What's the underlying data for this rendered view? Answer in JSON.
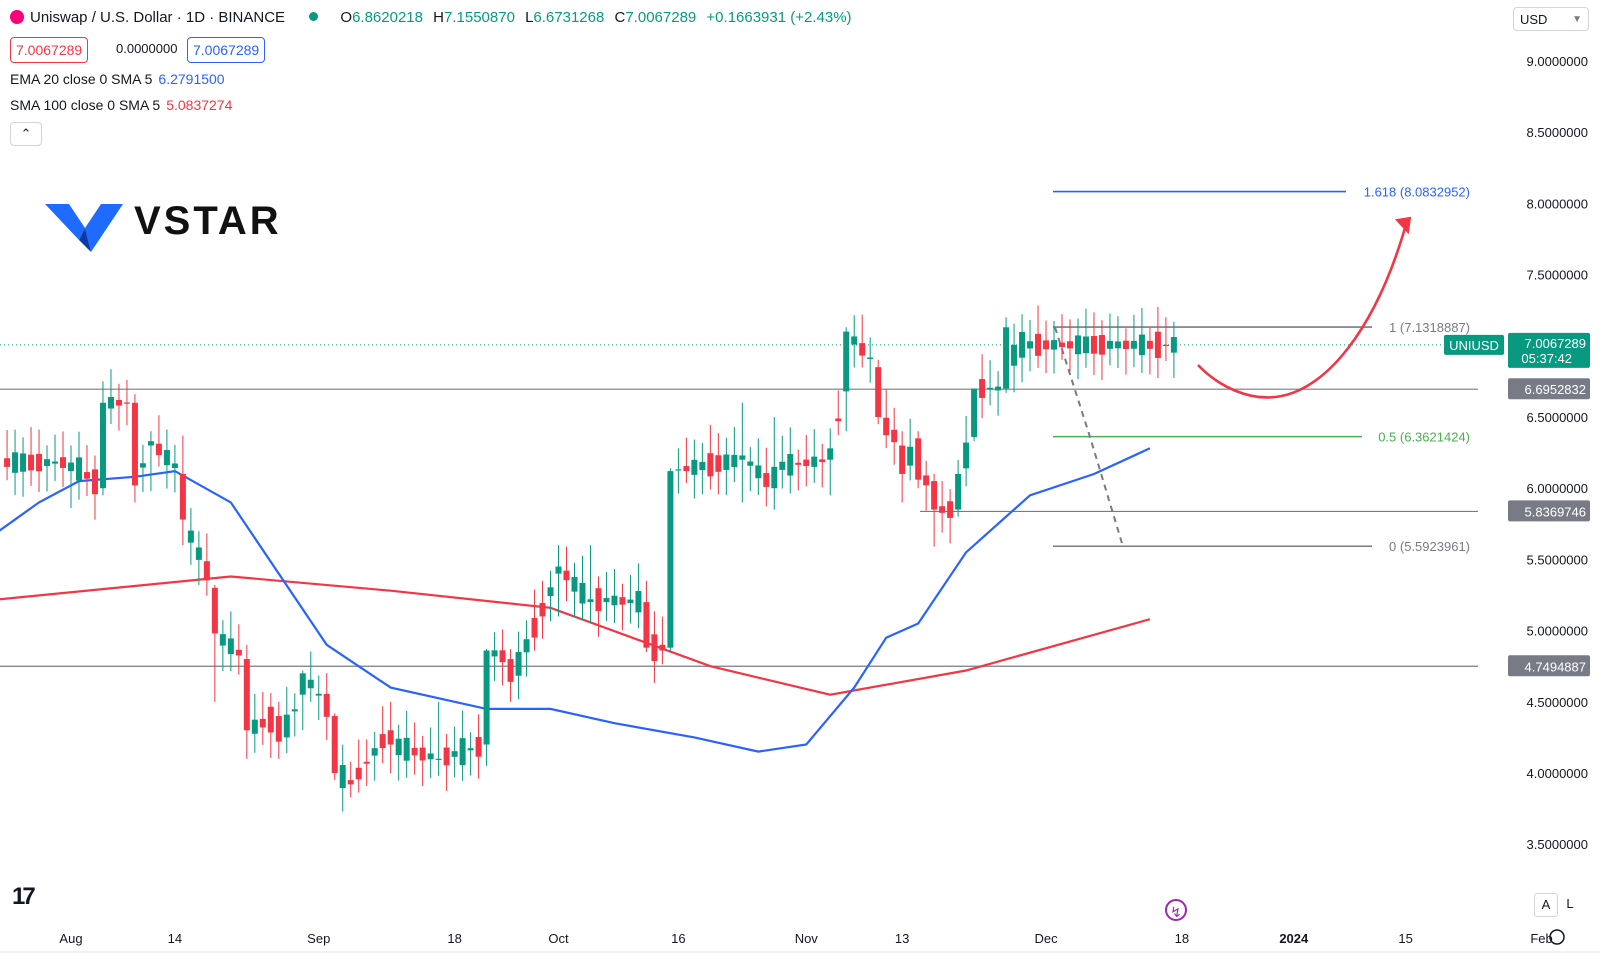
{
  "header": {
    "symbol_title": "Uniswap / U.S. Dollar · 1D · BINANCE",
    "open_label": "O",
    "open": "6.8620218",
    "high_label": "H",
    "high": "7.1550870",
    "low_label": "L",
    "low": "6.6731268",
    "close_label": "C",
    "close": "7.0067289",
    "change": "+0.1663931 (+2.43%)",
    "sell_price": "7.0067289",
    "spread": "0.0000000",
    "buy_price": "7.0067289"
  },
  "indicators": {
    "ema_label": "EMA 20 close 0 SMA 5",
    "ema_value": "6.2791500",
    "sma_label": "SMA 100 close 0 SMA 5",
    "sma_value": "5.0837274"
  },
  "toolbar": {
    "collapse_icon": "chevron-up-icon",
    "currency": "USD",
    "auto_label": "A",
    "log_label": "L"
  },
  "brand": {
    "name": "VSTAR"
  },
  "colors": {
    "up": "#089981",
    "down": "#f23645",
    "ema": "#2962ff",
    "sma": "#f23645",
    "fib_ext": "#2962ff",
    "fib_mid": "#4caf50",
    "arrow": "#f23645",
    "level": "#787b86"
  },
  "chart_data": {
    "type": "candlestick",
    "symbol": "UNIUSD",
    "timeframe": "1D",
    "ylim": [
      3.25,
      9.4
    ],
    "y_ticks": [
      "9.0000000",
      "8.5000000",
      "8.0000000",
      "7.5000000",
      "6.5000000",
      "6.0000000",
      "5.5000000",
      "5.0000000",
      "4.5000000",
      "4.0000000",
      "3.5000000"
    ],
    "x_ticks": [
      "Aug",
      "14",
      "Sep",
      "18",
      "Oct",
      "16",
      "Nov",
      "13",
      "Dec",
      "18",
      "2024",
      "15",
      "Feb"
    ],
    "last_price": {
      "symbol": "UNIUSD",
      "value": "7.0067289",
      "countdown": "05:37:42"
    },
    "levels": [
      {
        "value": 6.6952832,
        "label": "6.6952832"
      },
      {
        "value": 5.8369746,
        "label": "5.8369746"
      },
      {
        "value": 4.7494887,
        "label": "4.7494887"
      }
    ],
    "fib": [
      {
        "ratio": "1",
        "value": 7.1318887,
        "label": "1 (7.1318887)"
      },
      {
        "ratio": "0.5",
        "value": 6.3621424,
        "label": "0.5 (6.3621424)"
      },
      {
        "ratio": "0",
        "value": 5.5923961,
        "label": "0 (5.5923961)"
      },
      {
        "ratio": "1.618",
        "value": 8.0832952,
        "label": "1.618 (8.0832952)"
      }
    ],
    "anchors": [
      {
        "o": 6.12,
        "h": 6.3,
        "l": 5.86,
        "c": 6.18
      },
      {
        "o": 6.0,
        "h": 6.75,
        "l": 5.95,
        "c": 6.6
      },
      {
        "o": 6.6,
        "h": 6.66,
        "l": 5.9,
        "c": 6.02
      },
      {
        "o": 6.3,
        "h": 6.4,
        "l": 5.98,
        "c": 6.33
      },
      {
        "o": 6.1,
        "h": 6.37,
        "l": 5.6,
        "c": 5.78
      },
      {
        "o": 5.3,
        "h": 5.32,
        "l": 4.5,
        "c": 4.98
      },
      {
        "o": 4.8,
        "h": 4.9,
        "l": 4.1,
        "c": 4.3
      },
      {
        "o": 4.4,
        "h": 4.5,
        "l": 4.1,
        "c": 4.22
      },
      {
        "o": 4.55,
        "h": 4.72,
        "l": 4.3,
        "c": 4.7
      },
      {
        "o": 4.4,
        "h": 4.42,
        "l": 3.95,
        "c": 4.0
      },
      {
        "o": 3.95,
        "h": 4.08,
        "l": 3.83,
        "c": 3.92
      },
      {
        "o": 4.3,
        "h": 4.5,
        "l": 4.0,
        "c": 4.2
      },
      {
        "o": 4.1,
        "h": 4.5,
        "l": 3.98,
        "c": 4.1
      },
      {
        "o": 4.2,
        "h": 4.87,
        "l": 4.05,
        "c": 4.86
      },
      {
        "o": 4.8,
        "h": 4.87,
        "l": 4.5,
        "c": 4.64
      },
      {
        "o": 5.4,
        "h": 5.6,
        "l": 5.1,
        "c": 5.45
      },
      {
        "o": 5.2,
        "h": 5.6,
        "l": 5.05,
        "c": 5.22
      },
      {
        "o": 5.2,
        "h": 5.35,
        "l": 4.85,
        "c": 4.88
      },
      {
        "o": 4.88,
        "h": 6.14,
        "l": 4.85,
        "c": 6.12
      },
      {
        "o": 6.2,
        "h": 6.6,
        "l": 5.9,
        "c": 6.23
      },
      {
        "o": 6.0,
        "h": 6.5,
        "l": 5.85,
        "c": 6.15
      },
      {
        "o": 6.2,
        "h": 6.42,
        "l": 5.95,
        "c": 6.28
      },
      {
        "o": 6.68,
        "h": 7.13,
        "l": 6.4,
        "c": 7.1
      },
      {
        "o": 6.85,
        "h": 6.9,
        "l": 6.45,
        "c": 6.5
      },
      {
        "o": 6.3,
        "h": 6.4,
        "l": 5.9,
        "c": 6.1
      },
      {
        "o": 6.35,
        "h": 6.4,
        "l": 6.0,
        "c": 6.06
      },
      {
        "o": 6.05,
        "h": 6.1,
        "l": 5.59,
        "c": 5.85
      },
      {
        "o": 5.85,
        "h": 6.2,
        "l": 5.8,
        "c": 6.1
      },
      {
        "o": 6.36,
        "h": 6.6,
        "l": 6.33,
        "c": 6.7
      },
      {
        "o": 6.7,
        "h": 7.2,
        "l": 6.67,
        "c": 7.13
      },
      {
        "o": 6.86,
        "h": 7.155,
        "l": 6.673,
        "c": 7.0067
      }
    ],
    "ema20": [
      {
        "x": "Aug",
        "y": 5.7
      },
      {
        "x": "Aug",
        "y": 5.9
      },
      {
        "x": "Aug",
        "y": 6.05
      },
      {
        "x": "14",
        "y": 6.08
      },
      {
        "x": "14",
        "y": 6.12
      },
      {
        "x": "14",
        "y": 5.9
      },
      {
        "x": "Sep",
        "y": 4.9
      },
      {
        "x": "Sep",
        "y": 4.6
      },
      {
        "x": "18",
        "y": 4.45
      },
      {
        "x": "Oct",
        "y": 4.45
      },
      {
        "x": "Oct",
        "y": 4.35
      },
      {
        "x": "16",
        "y": 4.25
      },
      {
        "x": "16",
        "y": 4.15
      },
      {
        "x": "Nov",
        "y": 4.2
      },
      {
        "x": "Nov",
        "y": 4.6
      },
      {
        "x": "13",
        "y": 4.95
      },
      {
        "x": "13",
        "y": 5.05
      },
      {
        "x": "Dec",
        "y": 5.55
      },
      {
        "x": "Dec",
        "y": 5.95
      },
      {
        "x": "18",
        "y": 6.1
      },
      {
        "x": "18",
        "y": 6.28
      }
    ],
    "sma100": [
      {
        "x": "Aug",
        "y": 5.22
      },
      {
        "x": "14",
        "y": 5.38
      },
      {
        "x": "Sep",
        "y": 5.28
      },
      {
        "x": "Oct",
        "y": 5.16
      },
      {
        "x": "Nov",
        "y": 4.75
      },
      {
        "x": "13",
        "y": 4.55
      },
      {
        "x": "Dec",
        "y": 4.72
      },
      {
        "x": "18",
        "y": 5.08
      }
    ]
  }
}
